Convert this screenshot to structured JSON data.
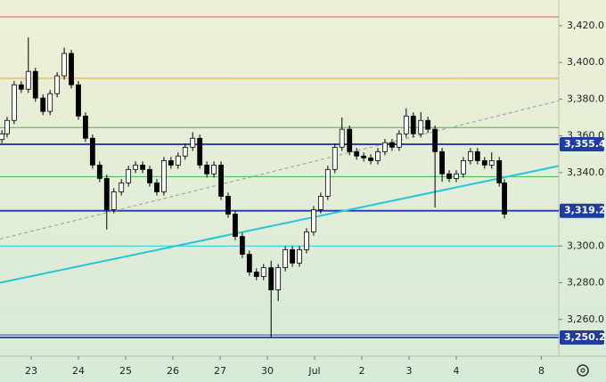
{
  "chart_data": {
    "type": "candlestick",
    "xlim": [
      -0.66,
      11.17
    ],
    "ylim": [
      3240,
      3434
    ],
    "xticks": [
      {
        "value": 0,
        "label": "23"
      },
      {
        "value": 1,
        "label": "24"
      },
      {
        "value": 2,
        "label": "25"
      },
      {
        "value": 3,
        "label": "26"
      },
      {
        "value": 4,
        "label": "27"
      },
      {
        "value": 5,
        "label": "30"
      },
      {
        "value": 6,
        "label": "Jul"
      },
      {
        "value": 7,
        "label": "2"
      },
      {
        "value": 8,
        "label": "3"
      },
      {
        "value": 9,
        "label": "4"
      },
      {
        "value": 10.8,
        "label": "8"
      }
    ],
    "yticks": [
      {
        "value": 3260,
        "label": "3,260.0"
      },
      {
        "value": 3280,
        "label": "3,280.0"
      },
      {
        "value": 3300,
        "label": "3,300.0"
      },
      {
        "value": 3320,
        "label": "3,320.0"
      },
      {
        "value": 3340,
        "label": "3,340.0"
      },
      {
        "value": 3360,
        "label": "3,360.0"
      },
      {
        "value": 3380,
        "label": "3,380.0"
      },
      {
        "value": 3400,
        "label": "3,400.0"
      },
      {
        "value": 3420,
        "label": "3,420.0"
      }
    ],
    "up_color": "#ffffff",
    "down_color": "#000000",
    "x": [
      -0.62,
      -0.51,
      -0.36,
      -0.21,
      -0.06,
      0.09,
      0.25,
      0.4,
      0.55,
      0.7,
      0.85,
      1.0,
      1.15,
      1.3,
      1.45,
      1.6,
      1.75,
      1.91,
      2.06,
      2.21,
      2.36,
      2.51,
      2.66,
      2.81,
      2.96,
      3.11,
      3.26,
      3.42,
      3.57,
      3.72,
      3.87,
      4.02,
      4.17,
      4.32,
      4.47,
      4.62,
      4.77,
      4.92,
      5.08,
      5.23,
      5.38,
      5.53,
      5.68,
      5.83,
      5.98,
      6.13,
      6.28,
      6.43,
      6.58,
      6.74,
      6.89,
      7.04,
      7.19,
      7.34,
      7.49,
      7.64,
      7.79,
      7.94,
      8.09,
      8.25,
      8.4,
      8.55,
      8.7,
      8.85,
      9.0,
      9.15,
      9.3,
      9.45,
      9.6,
      9.75,
      9.91,
      10.02
    ],
    "open": [
      3358.0,
      3361.1,
      3368.4,
      3387.8,
      3385.4,
      3395.1,
      3380.6,
      3373.3,
      3383.0,
      3392.7,
      3404.9,
      3387.8,
      3370.8,
      3358.7,
      3344.1,
      3336.8,
      3319.8,
      3329.5,
      3334.4,
      3341.7,
      3344.1,
      3341.7,
      3334.4,
      3329.5,
      3346.5,
      3344.1,
      3349.0,
      3353.8,
      3358.7,
      3344.1,
      3339.3,
      3344.1,
      3327.1,
      3317.4,
      3305.2,
      3295.5,
      3285.8,
      3283.4,
      3288.2,
      3276.1,
      3288.2,
      3298.0,
      3290.7,
      3298.0,
      3307.7,
      3319.8,
      3327.1,
      3341.7,
      3353.8,
      3363.6,
      3351.4,
      3349.0,
      3348.0,
      3346.5,
      3351.4,
      3356.3,
      3353.8,
      3361.1,
      3370.8,
      3361.1,
      3368.4,
      3363.6,
      3351.4,
      3339.3,
      3336.8,
      3339.3,
      3346.5,
      3351.4,
      3346.5,
      3344.1,
      3346.5,
      3334.4
    ],
    "high": [
      3363.1,
      3370.4,
      3389.8,
      3389.8,
      3413.6,
      3397.1,
      3382.6,
      3385.0,
      3394.7,
      3408.0,
      3406.9,
      3389.8,
      3372.8,
      3360.7,
      3346.1,
      3338.8,
      3331.5,
      3336.4,
      3343.7,
      3346.1,
      3346.1,
      3343.7,
      3336.4,
      3348.5,
      3348.5,
      3351.0,
      3355.8,
      3362.0,
      3360.7,
      3346.1,
      3346.1,
      3346.1,
      3329.1,
      3319.4,
      3307.2,
      3297.5,
      3287.8,
      3290.2,
      3292.0,
      3290.2,
      3300.0,
      3300.0,
      3300.0,
      3309.7,
      3321.8,
      3329.1,
      3343.7,
      3355.8,
      3370.0,
      3365.6,
      3353.4,
      3351.0,
      3350.0,
      3353.4,
      3358.3,
      3358.3,
      3363.1,
      3375.0,
      3372.8,
      3373.0,
      3370.4,
      3365.6,
      3353.4,
      3341.3,
      3341.3,
      3348.5,
      3353.4,
      3353.4,
      3348.5,
      3351.0,
      3348.5,
      3336.4
    ],
    "low": [
      3356.0,
      3359.1,
      3366.4,
      3383.4,
      3383.4,
      3378.6,
      3371.3,
      3371.3,
      3381.0,
      3390.7,
      3385.8,
      3368.8,
      3356.7,
      3342.1,
      3334.8,
      3309.0,
      3317.8,
      3327.5,
      3332.4,
      3339.7,
      3339.7,
      3332.4,
      3327.5,
      3327.5,
      3342.1,
      3342.1,
      3347.0,
      3351.8,
      3342.1,
      3337.3,
      3337.3,
      3325.1,
      3315.4,
      3303.2,
      3293.5,
      3283.8,
      3281.4,
      3281.4,
      3250.3,
      3270.0,
      3286.2,
      3288.7,
      3288.7,
      3296.0,
      3305.7,
      3317.8,
      3325.1,
      3339.7,
      3351.8,
      3349.4,
      3347.0,
      3346.0,
      3344.5,
      3344.5,
      3349.4,
      3351.8,
      3351.8,
      3359.1,
      3359.1,
      3359.1,
      3361.6,
      3321.0,
      3335.0,
      3334.8,
      3334.8,
      3337.3,
      3344.5,
      3344.5,
      3342.1,
      3342.1,
      3332.4,
      3315.0
    ],
    "close": [
      3361.1,
      3368.4,
      3387.8,
      3385.4,
      3395.1,
      3380.6,
      3373.3,
      3383.0,
      3392.7,
      3404.9,
      3387.8,
      3370.8,
      3358.7,
      3344.1,
      3336.8,
      3319.8,
      3329.5,
      3334.4,
      3341.7,
      3344.1,
      3341.7,
      3334.4,
      3329.5,
      3346.5,
      3344.1,
      3349.0,
      3353.8,
      3358.7,
      3344.1,
      3339.3,
      3344.1,
      3327.1,
      3317.4,
      3305.2,
      3295.5,
      3285.8,
      3283.4,
      3288.2,
      3276.1,
      3288.2,
      3298.0,
      3290.7,
      3298.0,
      3307.7,
      3319.8,
      3327.1,
      3341.7,
      3353.8,
      3363.6,
      3351.4,
      3349.0,
      3348.0,
      3346.5,
      3351.4,
      3356.3,
      3353.8,
      3361.1,
      3370.8,
      3361.1,
      3368.4,
      3363.6,
      3351.4,
      3339.3,
      3336.8,
      3339.3,
      3346.5,
      3351.4,
      3346.5,
      3344.1,
      3346.5,
      3334.4,
      3317.4
    ],
    "hlines": [
      {
        "value": 3424.8,
        "color": "#e05a5a"
      },
      {
        "value": 3391.3,
        "color": "#f0a030"
      },
      {
        "value": 3364.5,
        "color": "#4caf50"
      },
      {
        "value": 3355.4,
        "color": "#1f3ca0",
        "label": "3,355.4"
      },
      {
        "value": 3337.8,
        "color": "#4caf50"
      },
      {
        "value": 3319.2,
        "color": "#1f3ca0",
        "label": "3,319.2"
      },
      {
        "value": 3300,
        "color": "#26c6da"
      },
      {
        "value": 3251.6,
        "color": "#3a4a70"
      },
      {
        "value": 3250.2,
        "color": "#1f3ca0",
        "label": "3,250.2"
      }
    ],
    "trendlines": [
      {
        "x": [
          -0.66,
          11.17
        ],
        "y": [
          3303.8,
          3379.1
        ],
        "color": "#9a9a9a",
        "dashed": true
      },
      {
        "x": [
          -0.66,
          11.17
        ],
        "y": [
          3280,
          3343.6
        ],
        "color": "#26c6da"
      }
    ]
  }
}
